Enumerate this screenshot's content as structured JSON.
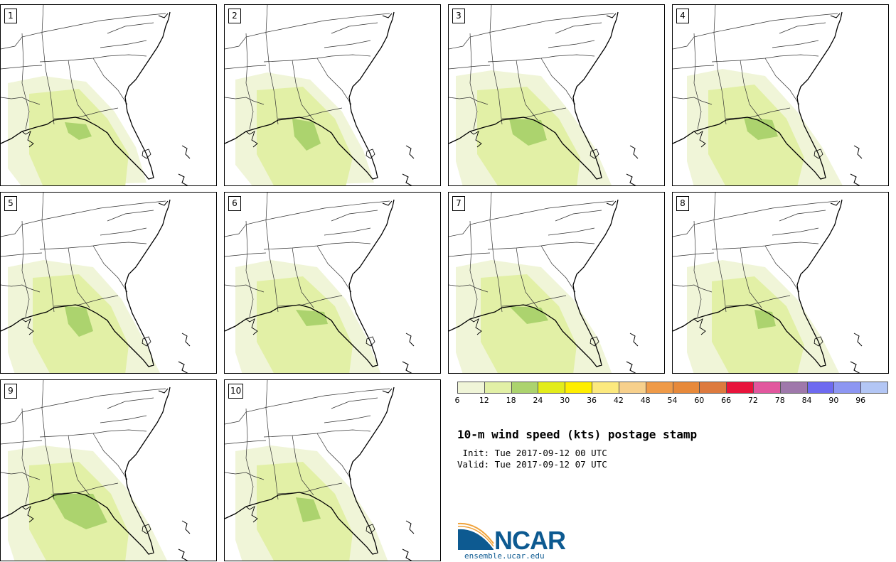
{
  "panels": [
    {
      "label": "1"
    },
    {
      "label": "2"
    },
    {
      "label": "3"
    },
    {
      "label": "4"
    },
    {
      "label": "5"
    },
    {
      "label": "6"
    },
    {
      "label": "7"
    },
    {
      "label": "8"
    },
    {
      "label": "9"
    },
    {
      "label": "10"
    }
  ],
  "colorbar": {
    "colors": [
      "#f0f5d8",
      "#e2f0a6",
      "#acd36e",
      "#e3ec1a",
      "#ffee00",
      "#fce97e",
      "#f7d08c",
      "#ef9a48",
      "#e7893a",
      "#dd7a3e",
      "#e8143c",
      "#e2579e",
      "#9f78ab",
      "#6e6af0",
      "#8d96f2",
      "#b3c6f5"
    ],
    "ticks": [
      "6",
      "12",
      "18",
      "24",
      "30",
      "36",
      "42",
      "48",
      "54",
      "60",
      "66",
      "72",
      "78",
      "84",
      "90",
      "96"
    ]
  },
  "title": "10-m wind speed (kts) postage stamp",
  "init_line": " Init: Tue 2017-09-12 00 UTC",
  "valid_line": "Valid: Tue 2017-09-12 07 UTC",
  "logo": {
    "word": "NCAR",
    "url": "ensemble.ucar.edu"
  }
}
